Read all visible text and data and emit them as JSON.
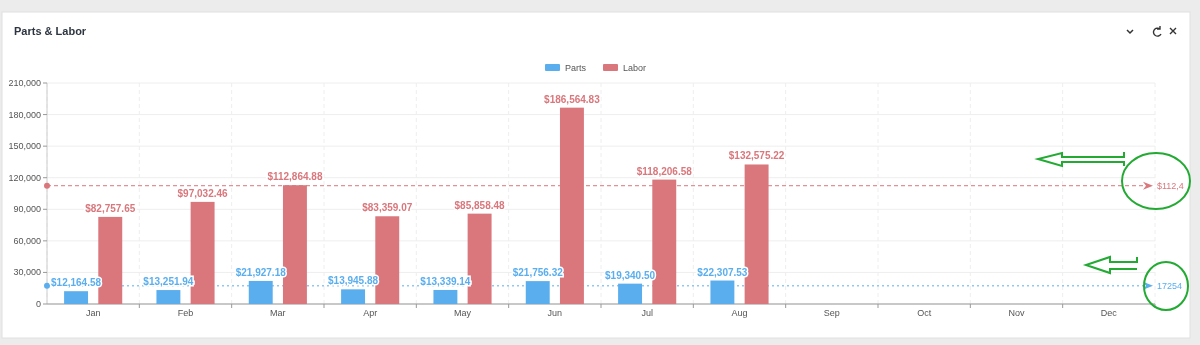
{
  "chart_data": {
    "type": "bar",
    "title": "Parts & Labor",
    "categories": [
      "Jan",
      "Feb",
      "Mar",
      "Apr",
      "May",
      "Jun",
      "Jul",
      "Aug",
      "Sep",
      "Oct",
      "Nov",
      "Dec"
    ],
    "series": [
      {
        "name": "Parts",
        "color": "#5aaeee",
        "values": [
          12164.58,
          13251.94,
          21927.18,
          13945.88,
          13339.14,
          21756.32,
          19340.5,
          22307.53,
          null,
          null,
          null,
          null
        ],
        "value_labels": [
          "$12,164.58",
          "$13,251.94",
          "$21,927.18",
          "$13,945.88",
          "$13,339.14",
          "$21,756.32",
          "$19,340.50",
          "$22,307.53",
          null,
          null,
          null,
          null
        ]
      },
      {
        "name": "Labor",
        "color": "#d9777c",
        "values": [
          82757.65,
          97032.46,
          112864.88,
          83359.07,
          85858.48,
          186564.83,
          118206.58,
          132575.22,
          null,
          null,
          null,
          null
        ],
        "value_labels": [
          "$82,757.65",
          "$97,032.46",
          "$112,864.88",
          "$83,359.07",
          "$85,858.48",
          "$186,564.83",
          "$118,206.58",
          "$132,575.22",
          null,
          null,
          null,
          null
        ]
      }
    ],
    "ylim": [
      0,
      210000
    ],
    "yticks": [
      {
        "value": 0,
        "label": "0"
      },
      {
        "value": 30000,
        "label": "30,000"
      },
      {
        "value": 60000,
        "label": "60,000"
      },
      {
        "value": 90000,
        "label": "90,000"
      },
      {
        "value": 120000,
        "label": "120,000"
      },
      {
        "value": 150000,
        "label": "150,000"
      },
      {
        "value": 180000,
        "label": "180,000"
      },
      {
        "value": 210000,
        "label": "210,000"
      }
    ],
    "ref_lines": [
      {
        "axis": "y",
        "value": 112402,
        "color": "#d9777c",
        "line_style": "dashed"
      },
      {
        "axis": "y",
        "value": 17254,
        "label": "17254",
        "color": "#5aaeee",
        "line_style": "dotted"
      }
    ],
    "annotations": [
      "$112,4"
    ],
    "grid": true,
    "legend": "top"
  }
}
